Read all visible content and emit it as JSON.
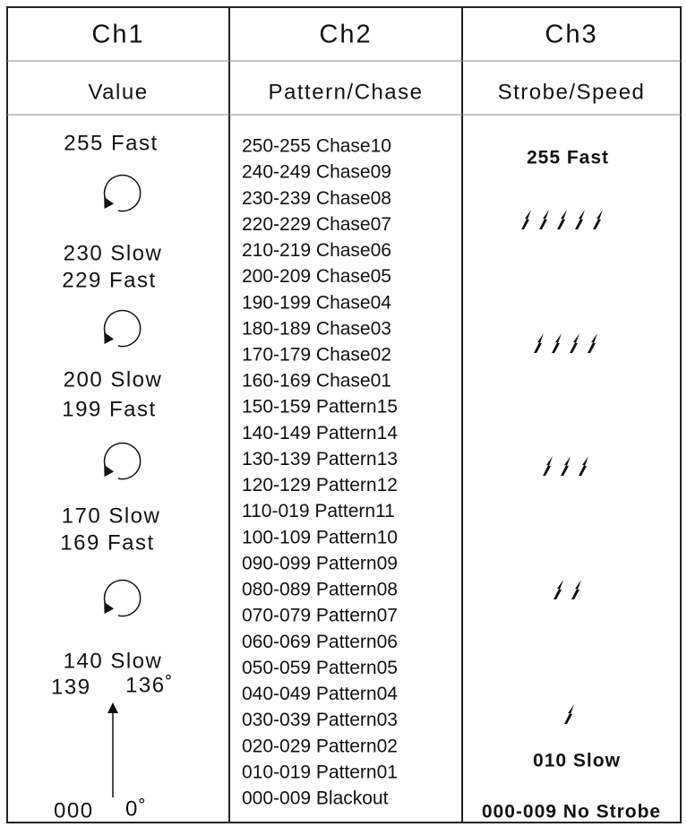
{
  "table": {
    "header": [
      "Ch1",
      "Ch2",
      "Ch3"
    ],
    "subheader": [
      "Value",
      "Pattern/Chase",
      "Strobe/Speed"
    ],
    "ch1": [
      "255 Fast",
      "230 Slow",
      "229 Fast",
      "200 Slow",
      "199 Fast",
      "170 Slow",
      "169 Fast",
      "140 Slow",
      "139",
      "136˚",
      "000",
      "0˚"
    ],
    "ch2": [
      "250-255 Chase10",
      "240-249 Chase09",
      "230-239 Chase08",
      "220-229 Chase07",
      "210-219 Chase06",
      "200-209 Chase05",
      "190-199 Chase04",
      "180-189 Chase03",
      "170-179 Chase02",
      "160-169 Chase01",
      "150-159 Pattern15",
      "140-149 Pattern14",
      "130-139 Pattern13",
      "120-129 Pattern12",
      "110-019 Pattern11",
      "100-109 Pattern10",
      "090-099 Pattern09",
      "080-089 Pattern08",
      "070-079 Pattern07",
      "060-069 Pattern06",
      "050-059 Pattern05",
      "040-049 Pattern04",
      "030-039 Pattern03",
      "020-029 Pattern02",
      "010-019 Pattern01",
      "000-009 Blackout"
    ],
    "ch3": [
      "255 Fast",
      "010 Slow",
      "000-009 No Strobe"
    ]
  }
}
